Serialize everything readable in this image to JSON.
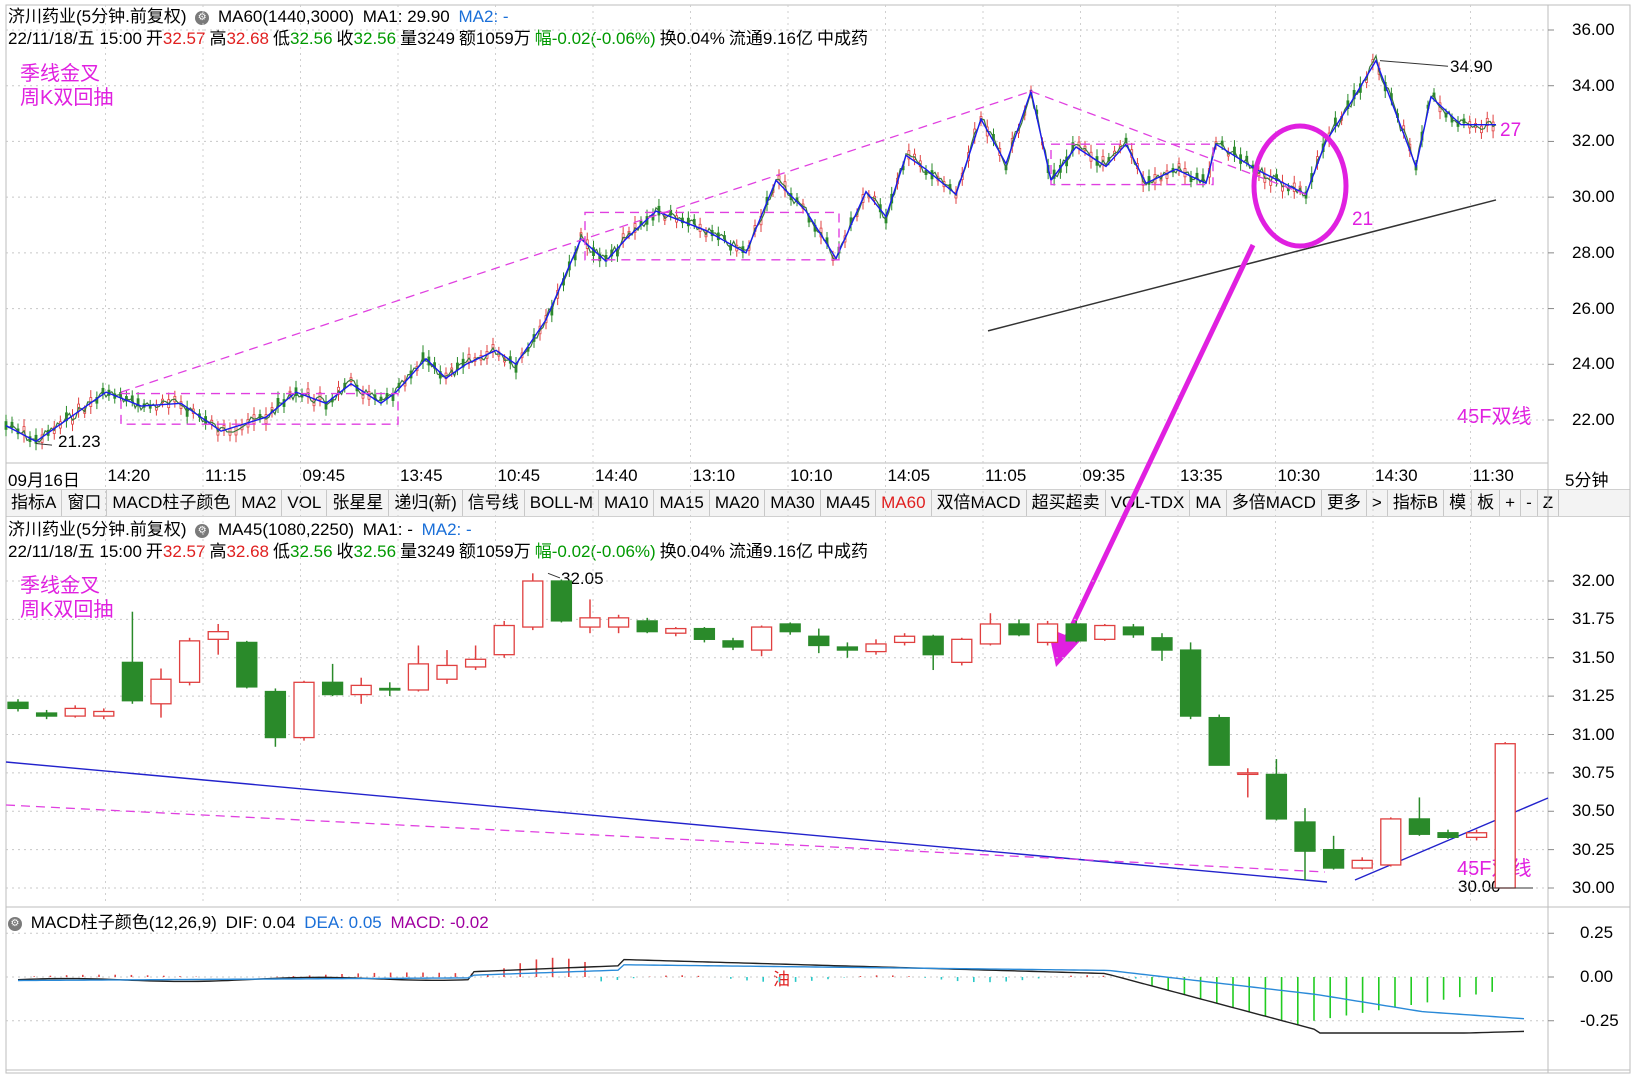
{
  "top_panel": {
    "stock": "济川药业(5分钟.前复权)",
    "indicator": "MA60(1440,3000)",
    "ma1": "MA1: 29.90",
    "ma2": "MA2: -",
    "info": {
      "date": "22/11/18/五 15:00",
      "open_label": "开",
      "open": "32.57",
      "high_label": "高",
      "high": "32.68",
      "low_label": "低",
      "low": "32.56",
      "close_label": "收",
      "close": "32.56",
      "volume": "量3249",
      "amount": "额1059万",
      "change": "幅-0.02(-0.06%)",
      "turnover": "换0.04%",
      "float": "流通9.16亿",
      "sector": "中成药"
    },
    "notes": [
      "季线金叉",
      "周K双回抽"
    ],
    "label_45f": "45F双线",
    "circle_label": "21",
    "label_27": "27",
    "high_mark": "34.90",
    "low_mark": "21.23",
    "y_ticks": [
      "36.00",
      "34.00",
      "32.00",
      "30.00",
      "28.00",
      "26.00",
      "24.00",
      "22.00"
    ],
    "x_labels": [
      "09月16日",
      "14:20",
      "11:15",
      "09:45",
      "13:45",
      "10:45",
      "14:40",
      "13:10",
      "10:10",
      "14:05",
      "11:05",
      "09:35",
      "13:35",
      "10:30",
      "14:30",
      "11:30"
    ],
    "period": "5分钟"
  },
  "toolbar": {
    "tabs": [
      "指标A",
      "窗口",
      "MACD柱子颜色",
      "MA2",
      "VOL",
      "张星星",
      "递归(新)",
      "信号线",
      "BOLL-M",
      "MA10",
      "MA15",
      "MA20",
      "MA30",
      "MA45",
      "MA60",
      "双倍MACD",
      "超买超卖",
      "VOL-TDX",
      "MA",
      "多倍MACD",
      "更多",
      ">",
      "指标B",
      "模",
      "板",
      "+",
      "-",
      "Z"
    ],
    "active": "MA60"
  },
  "mid_panel": {
    "stock": "济川药业(5分钟.前复权)",
    "indicator": "MA45(1080,2250)",
    "ma1": "MA1: -",
    "ma2": "MA2: -",
    "notes": [
      "季线金叉",
      "周K双回抽"
    ],
    "label_45f": "45F双线",
    "high_mark": "32.05",
    "low_mark": "30.00",
    "y_ticks": [
      "32.00",
      "31.75",
      "31.50",
      "31.25",
      "31.00",
      "30.75",
      "30.50",
      "30.25",
      "30.00"
    ]
  },
  "macd_panel": {
    "title": "MACD柱子颜色(12,26,9)",
    "dif": "DIF: 0.04",
    "dea": "DEA: 0.05",
    "macd": "MACD: -0.02",
    "oil_label": "油",
    "y_ticks": [
      "0.25",
      "0.00",
      "-0.25"
    ]
  },
  "chart_data": [
    {
      "type": "candlestick",
      "panel": "top",
      "ylim": [
        21,
        36.5
      ],
      "approx_close_path": [
        [
          0,
          21.8
        ],
        [
          30,
          21.23
        ],
        [
          100,
          23.0
        ],
        [
          135,
          22.5
        ],
        [
          175,
          22.6
        ],
        [
          215,
          21.6
        ],
        [
          260,
          22.1
        ],
        [
          290,
          23.0
        ],
        [
          320,
          22.6
        ],
        [
          345,
          23.3
        ],
        [
          375,
          22.6
        ],
        [
          390,
          23.0
        ],
        [
          420,
          24.2
        ],
        [
          440,
          23.5
        ],
        [
          460,
          24.0
        ],
        [
          490,
          24.5
        ],
        [
          510,
          24.0
        ],
        [
          540,
          25.6
        ],
        [
          575,
          28.5
        ],
        [
          600,
          27.7
        ],
        [
          620,
          28.5
        ],
        [
          650,
          29.5
        ],
        [
          700,
          28.8
        ],
        [
          740,
          28.0
        ],
        [
          770,
          30.6
        ],
        [
          800,
          29.5
        ],
        [
          830,
          27.8
        ],
        [
          860,
          30.2
        ],
        [
          880,
          29.3
        ],
        [
          900,
          31.5
        ],
        [
          920,
          31.0
        ],
        [
          950,
          30.1
        ],
        [
          975,
          32.8
        ],
        [
          1000,
          31.2
        ],
        [
          1025,
          33.8
        ],
        [
          1045,
          30.6
        ],
        [
          1070,
          31.8
        ],
        [
          1100,
          31.1
        ],
        [
          1120,
          31.9
        ],
        [
          1140,
          30.5
        ],
        [
          1170,
          31.0
        ],
        [
          1200,
          30.5
        ],
        [
          1210,
          31.9
        ],
        [
          1250,
          31.0
        ],
        [
          1300,
          30.1
        ],
        [
          1320,
          32.0
        ],
        [
          1345,
          33.4
        ],
        [
          1370,
          34.9
        ],
        [
          1410,
          31.1
        ],
        [
          1425,
          33.6
        ],
        [
          1455,
          32.6
        ],
        [
          1490,
          32.6
        ]
      ],
      "series": [
        {
          "name": "MA1",
          "values": [
            29.9
          ]
        }
      ]
    },
    {
      "type": "candlestick",
      "panel": "middle",
      "ylim": [
        30.0,
        32.1
      ],
      "candles": [
        {
          "o": 31.21,
          "c": 31.17,
          "h": 31.23,
          "l": 31.15
        },
        {
          "o": 31.14,
          "c": 31.12,
          "h": 31.16,
          "l": 31.1
        },
        {
          "o": 31.12,
          "c": 31.17,
          "h": 31.19,
          "l": 31.11
        },
        {
          "o": 31.12,
          "c": 31.15,
          "h": 31.17,
          "l": 31.1
        },
        {
          "o": 31.47,
          "c": 31.22,
          "h": 31.8,
          "l": 31.2
        },
        {
          "o": 31.2,
          "c": 31.36,
          "h": 31.43,
          "l": 31.11
        },
        {
          "o": 31.34,
          "c": 31.61,
          "h": 31.63,
          "l": 31.32
        },
        {
          "o": 31.62,
          "c": 31.67,
          "h": 31.72,
          "l": 31.52
        },
        {
          "o": 31.6,
          "c": 31.31,
          "h": 31.61,
          "l": 31.3
        },
        {
          "o": 31.28,
          "c": 30.98,
          "h": 31.3,
          "l": 30.92
        },
        {
          "o": 30.98,
          "c": 31.34,
          "h": 31.35,
          "l": 30.96
        },
        {
          "o": 31.34,
          "c": 31.26,
          "h": 31.46,
          "l": 31.25
        },
        {
          "o": 31.26,
          "c": 31.32,
          "h": 31.37,
          "l": 31.2
        },
        {
          "o": 31.3,
          "c": 31.29,
          "h": 31.34,
          "l": 31.25
        },
        {
          "o": 31.29,
          "c": 31.46,
          "h": 31.58,
          "l": 31.28
        },
        {
          "o": 31.36,
          "c": 31.45,
          "h": 31.55,
          "l": 31.33
        },
        {
          "o": 31.44,
          "c": 31.49,
          "h": 31.58,
          "l": 31.42
        },
        {
          "o": 31.52,
          "c": 31.71,
          "h": 31.74,
          "l": 31.5
        },
        {
          "o": 31.7,
          "c": 32.0,
          "h": 32.05,
          "l": 31.68
        },
        {
          "o": 32.0,
          "c": 31.74,
          "h": 32.01,
          "l": 31.73
        },
        {
          "o": 31.7,
          "c": 31.76,
          "h": 31.88,
          "l": 31.66
        },
        {
          "o": 31.7,
          "c": 31.76,
          "h": 31.78,
          "l": 31.66
        },
        {
          "o": 31.74,
          "c": 31.67,
          "h": 31.76,
          "l": 31.66
        },
        {
          "o": 31.66,
          "c": 31.69,
          "h": 31.7,
          "l": 31.64
        },
        {
          "o": 31.69,
          "c": 31.62,
          "h": 31.7,
          "l": 31.6
        },
        {
          "o": 31.61,
          "c": 31.57,
          "h": 31.63,
          "l": 31.55
        },
        {
          "o": 31.55,
          "c": 31.7,
          "h": 31.71,
          "l": 31.51
        },
        {
          "o": 31.72,
          "c": 31.67,
          "h": 31.73,
          "l": 31.65
        },
        {
          "o": 31.64,
          "c": 31.58,
          "h": 31.69,
          "l": 31.53
        },
        {
          "o": 31.57,
          "c": 31.55,
          "h": 31.6,
          "l": 31.5
        },
        {
          "o": 31.54,
          "c": 31.59,
          "h": 31.62,
          "l": 31.52
        },
        {
          "o": 31.6,
          "c": 31.64,
          "h": 31.66,
          "l": 31.58
        },
        {
          "o": 31.64,
          "c": 31.52,
          "h": 31.65,
          "l": 31.42
        },
        {
          "o": 31.47,
          "c": 31.62,
          "h": 31.63,
          "l": 31.45
        },
        {
          "o": 31.59,
          "c": 31.72,
          "h": 31.79,
          "l": 31.58
        },
        {
          "o": 31.72,
          "c": 31.65,
          "h": 31.75,
          "l": 31.64
        },
        {
          "o": 31.6,
          "c": 31.72,
          "h": 31.74,
          "l": 31.58
        },
        {
          "o": 31.72,
          "c": 31.61,
          "h": 31.74,
          "l": 31.6
        },
        {
          "o": 31.62,
          "c": 31.71,
          "h": 31.72,
          "l": 31.61
        },
        {
          "o": 31.7,
          "c": 31.65,
          "h": 31.72,
          "l": 31.63
        },
        {
          "o": 31.63,
          "c": 31.55,
          "h": 31.66,
          "l": 31.48
        },
        {
          "o": 31.55,
          "c": 31.12,
          "h": 31.6,
          "l": 31.1
        },
        {
          "o": 31.11,
          "c": 30.8,
          "h": 31.13,
          "l": 30.8
        },
        {
          "o": 30.75,
          "c": 30.75,
          "h": 30.78,
          "l": 30.59
        },
        {
          "o": 30.74,
          "c": 30.45,
          "h": 30.84,
          "l": 30.44
        },
        {
          "o": 30.43,
          "c": 30.24,
          "h": 30.52,
          "l": 30.05
        },
        {
          "o": 30.25,
          "c": 30.13,
          "h": 30.34,
          "l": 30.12
        },
        {
          "o": 30.13,
          "c": 30.18,
          "h": 30.2,
          "l": 30.12
        },
        {
          "o": 30.15,
          "c": 30.45,
          "h": 30.46,
          "l": 30.14
        },
        {
          "o": 30.45,
          "c": 30.35,
          "h": 30.59,
          "l": 30.34
        },
        {
          "o": 30.36,
          "c": 30.33,
          "h": 30.38,
          "l": 30.32
        },
        {
          "o": 30.33,
          "c": 30.36,
          "h": 30.38,
          "l": 30.31
        },
        {
          "o": 30.0,
          "c": 30.94,
          "h": 30.95,
          "l": 30.0
        }
      ]
    },
    {
      "type": "bar",
      "panel": "macd",
      "ylim": [
        -0.32,
        0.32
      ],
      "series": [
        {
          "name": "DIF",
          "values": [
            0.04
          ]
        },
        {
          "name": "DEA",
          "values": [
            0.05
          ]
        },
        {
          "name": "MACD",
          "values": [
            -0.02
          ]
        }
      ]
    }
  ]
}
